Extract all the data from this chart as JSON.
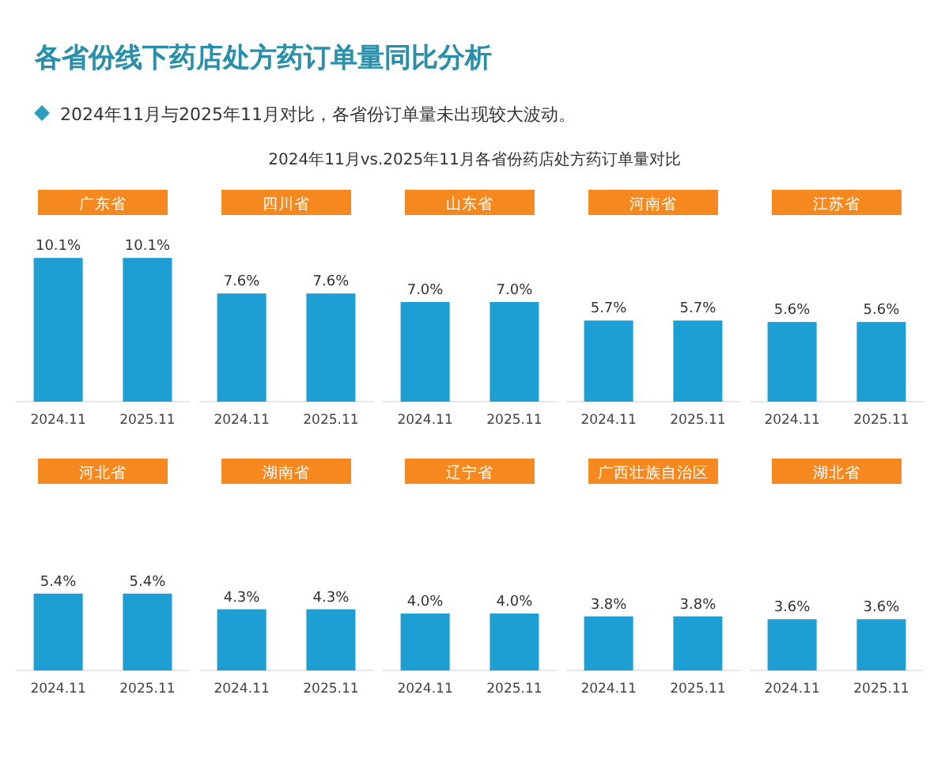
{
  "chart_data": [
    {
      "type": "other",
      "title": "各省份线下药店处方药订单量同比分析",
      "subtitle": "2024年11月与2025年11月对比，各省份订单量未出现较大波动。",
      "annotations": [
        "2024年11月vs.2025年11月各省份药店处方药订单量对比"
      ]
    },
    {
      "type": "bar",
      "title": "广东省",
      "categories": [
        "2024.11",
        "2025.11"
      ],
      "values": [
        10.1,
        10.1
      ],
      "value_labels": [
        "10.1%",
        "10.1%"
      ],
      "color": "#1e9fd4",
      "tick_labels": "x"
    },
    {
      "type": "bar",
      "title": "四川省",
      "categories": [
        "2024.11",
        "2025.11"
      ],
      "values": [
        7.6,
        7.6
      ],
      "value_labels": [
        "7.6%",
        "7.6%"
      ],
      "color": "#1e9fd4",
      "tick_labels": "x"
    },
    {
      "type": "bar",
      "title": "山东省",
      "categories": [
        "2024.11",
        "2025.11"
      ],
      "values": [
        7.0,
        7.0
      ],
      "value_labels": [
        "7.0%",
        "7.0%"
      ],
      "color": "#1e9fd4",
      "tick_labels": "x"
    },
    {
      "type": "bar",
      "title": "河南省",
      "categories": [
        "2024.11",
        "2025.11"
      ],
      "values": [
        5.7,
        5.7
      ],
      "value_labels": [
        "5.7%",
        "5.7%"
      ],
      "color": "#1e9fd4",
      "tick_labels": "x"
    },
    {
      "type": "bar",
      "title": "江苏省",
      "categories": [
        "2024.11",
        "2025.11"
      ],
      "values": [
        5.6,
        5.6
      ],
      "value_labels": [
        "5.6%",
        "5.6%"
      ],
      "color": "#1e9fd4",
      "tick_labels": "x"
    },
    {
      "type": "bar",
      "title": "河北省",
      "categories": [
        "2024.11",
        "2025.11"
      ],
      "values": [
        5.4,
        5.4
      ],
      "value_labels": [
        "5.4%",
        "5.4%"
      ],
      "color": "#1e9fd4",
      "tick_labels": "x"
    },
    {
      "type": "bar",
      "title": "湖南省",
      "categories": [
        "2024.11",
        "2025.11"
      ],
      "values": [
        4.3,
        4.3
      ],
      "value_labels": [
        "4.3%",
        "4.3%"
      ],
      "color": "#1e9fd4",
      "tick_labels": "x"
    },
    {
      "type": "bar",
      "title": "辽宁省",
      "categories": [
        "2024.11",
        "2025.11"
      ],
      "values": [
        4.0,
        4.0
      ],
      "value_labels": [
        "4.0%",
        "4.0%"
      ],
      "color": "#1e9fd4",
      "tick_labels": "x"
    },
    {
      "type": "bar",
      "title": "广西壮族自治区",
      "categories": [
        "2024.11",
        "2025.11"
      ],
      "values": [
        3.8,
        3.8
      ],
      "value_labels": [
        "3.8%",
        "3.8%"
      ],
      "color": "#1e9fd4",
      "tick_labels": "x"
    },
    {
      "type": "bar",
      "title": "湖北省",
      "categories": [
        "2024.11",
        "2025.11"
      ],
      "values": [
        3.6,
        3.6
      ],
      "value_labels": [
        "3.6%",
        "3.6%"
      ],
      "color": "#1e9fd4",
      "tick_labels": "x"
    }
  ]
}
